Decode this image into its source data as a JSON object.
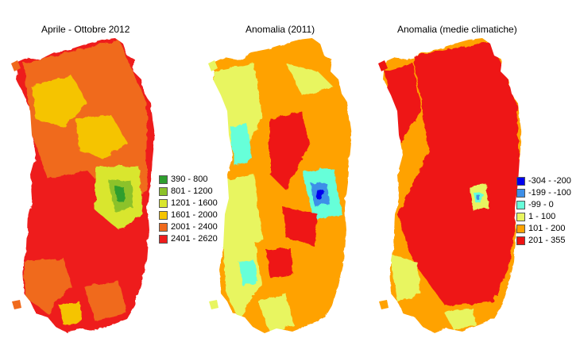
{
  "maps": [
    {
      "title": "Aprile - Ottobre 2012",
      "legend": [
        {
          "label": "390 - 800",
          "color": "#2e9e2e"
        },
        {
          "label": "801 - 1200",
          "color": "#8cc22a"
        },
        {
          "label": "1201 - 1600",
          "color": "#d9e62e"
        },
        {
          "label": "1601 - 2000",
          "color": "#f5c400"
        },
        {
          "label": "2001 - 2400",
          "color": "#f06a1c"
        },
        {
          "label": "2401 - 2620",
          "color": "#ee1c1c"
        }
      ]
    },
    {
      "title": "Anomalia (2011)"
    },
    {
      "title": "Anomalia (medie climatiche)",
      "legend": [
        {
          "label": "-304 - -200",
          "color": "#0000ee"
        },
        {
          "label": "-199 - -100",
          "color": "#3d8fe8"
        },
        {
          "label": "-99 - 0",
          "color": "#66ffd9"
        },
        {
          "label": "1 - 100",
          "color": "#e8f560"
        },
        {
          "label": "101 - 200",
          "color": "#ffa200"
        },
        {
          "label": "201 - 355",
          "color": "#ee1212"
        }
      ]
    }
  ]
}
